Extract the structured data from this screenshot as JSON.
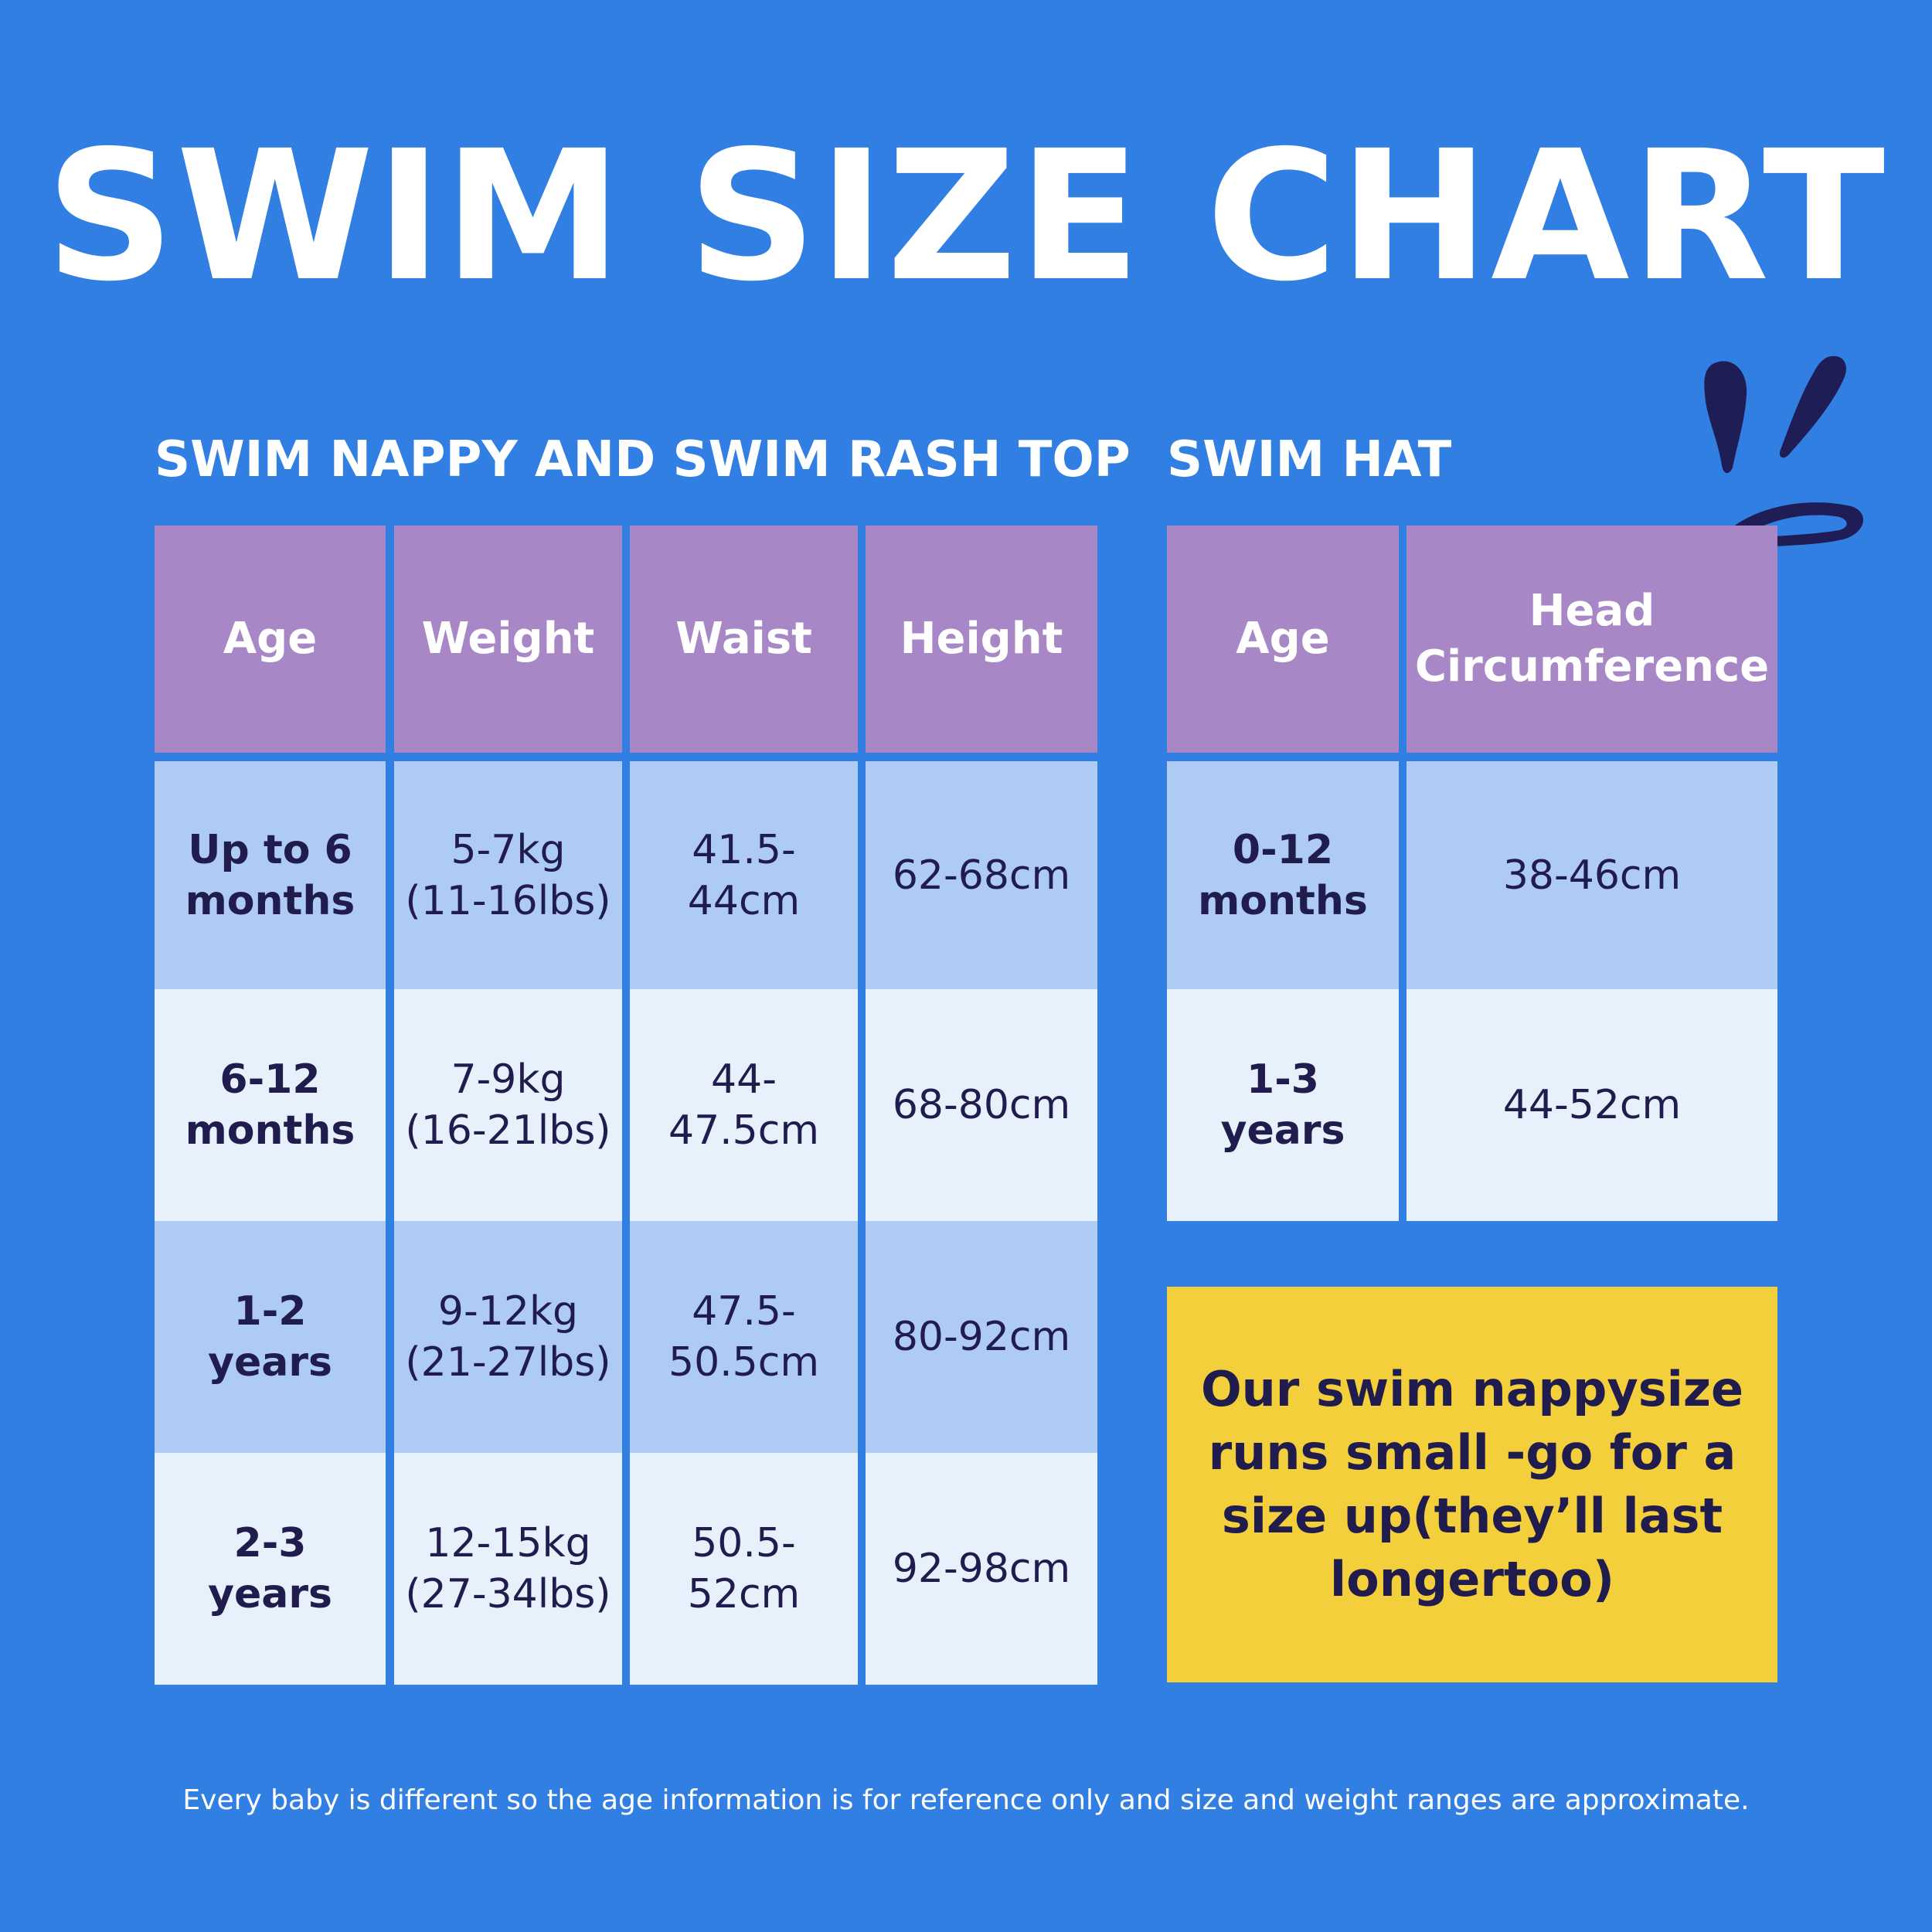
{
  "title": "SWIM SIZE CHART",
  "nappy_table": {
    "title": "SWIM NAPPY AND SWIM RASH TOP",
    "headers": [
      "Age",
      "Weight",
      "Waist",
      "Height"
    ],
    "rows": [
      {
        "age": [
          "Up to 6",
          "months"
        ],
        "weight": [
          "5-7kg",
          "(11-16lbs)"
        ],
        "waist": [
          "41.5-",
          "44cm"
        ],
        "height": "62-68cm"
      },
      {
        "age": [
          "6-12",
          "months"
        ],
        "weight": [
          "7-9kg",
          "(16-21lbs)"
        ],
        "waist": [
          "44-",
          "47.5cm"
        ],
        "height": "68-80cm"
      },
      {
        "age": [
          "1-2",
          "years"
        ],
        "weight": [
          "9-12kg",
          "(21-27lbs)"
        ],
        "waist": [
          "47.5-",
          "50.5cm"
        ],
        "height": "80-92cm"
      },
      {
        "age": [
          "2-3",
          "years"
        ],
        "weight": [
          "12-15kg",
          "(27-34lbs)"
        ],
        "waist": [
          "50.5-",
          "52cm"
        ],
        "height": "92-98cm"
      }
    ]
  },
  "hat_table": {
    "title": "SWIM HAT",
    "headers": [
      "Age",
      [
        "Head",
        "Circumference"
      ]
    ],
    "rows": [
      {
        "age": [
          "0-12",
          "months"
        ],
        "head": "38-46cm"
      },
      {
        "age": [
          "1-3",
          "years"
        ],
        "head": "44-52cm"
      }
    ]
  },
  "note": [
    "Our swim nappy",
    "size runs small -",
    "go for a size up",
    "(they’ll last longer",
    "too)"
  ],
  "footer": "Every baby is different so the age information is for reference only and size and weight ranges are approximate.",
  "colors": {
    "background": "#317fe3",
    "header": "#a787c6",
    "row_dark": "#adcbf3",
    "row_light": "#e6f1fb",
    "note_bg": "#f3cf3c",
    "text_dark": "#211c4e",
    "splash": "#1f1d55"
  },
  "icons": {
    "decoration": "splash-icon"
  }
}
